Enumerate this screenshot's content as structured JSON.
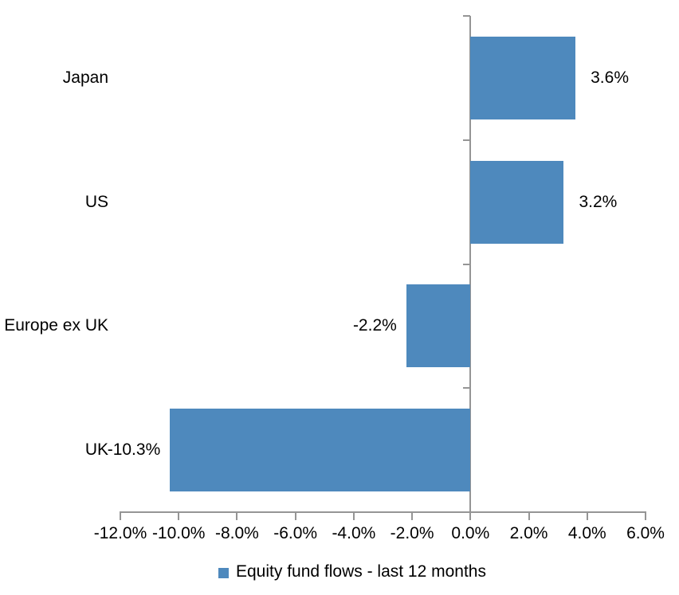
{
  "chart_data": {
    "type": "bar",
    "orientation": "horizontal",
    "categories": [
      "Japan",
      "US",
      "Europe ex UK",
      "UK"
    ],
    "series": [
      {
        "name": "Equity fund flows - last 12 months",
        "values": [
          3.6,
          3.2,
          -2.2,
          -10.3
        ],
        "value_labels": [
          "3.6%",
          "3.2%",
          "-2.2%",
          "-10.3%"
        ]
      }
    ],
    "title": "",
    "xlabel": "",
    "ylabel": "",
    "xlim": [
      -12,
      6
    ],
    "x_tick_values": [
      -12,
      -10,
      -8,
      -6,
      -4,
      -2,
      0,
      2,
      4,
      6
    ],
    "x_tick_labels": [
      "-12.0%",
      "-10.0%",
      "-8.0%",
      "-6.0%",
      "-4.0%",
      "-2.0%",
      "0.0%",
      "2.0%",
      "4.0%",
      "6.0%"
    ],
    "grid": false,
    "legend_position": "bottom",
    "colors": {
      "bar": "#4E89BD",
      "axis": "#959595",
      "text": "#000000"
    }
  },
  "legend": {
    "label": "Equity fund flows - last 12 months"
  }
}
